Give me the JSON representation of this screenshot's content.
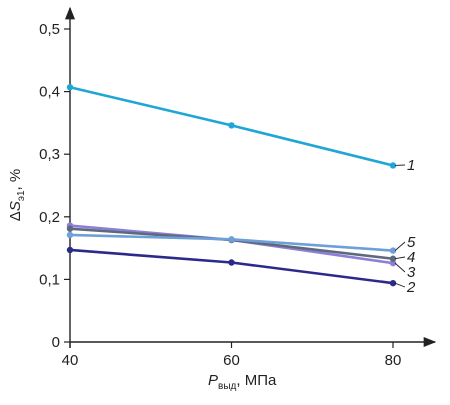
{
  "chart_data": {
    "type": "line",
    "x": [
      40,
      60,
      80
    ],
    "xticks": [
      "40",
      "60",
      "80"
    ],
    "yticks": [
      "0",
      "0,1",
      "0,2",
      "0,3",
      "0,4",
      "0,5"
    ],
    "xlim": [
      40,
      80
    ],
    "ylim": [
      0,
      0.5
    ],
    "grid": false,
    "xlabel": {
      "symbol": "P",
      "sub": "выд",
      "rest": ", МПа"
    },
    "ylabel": {
      "prefix": "Δ",
      "symbol": "S",
      "sub": "э1",
      "rest": ", %"
    },
    "series": [
      {
        "name": "1",
        "color": "#1fa6d4",
        "values": [
          0.407,
          0.346,
          0.282
        ]
      },
      {
        "name": "2",
        "color": "#2b2a8c",
        "values": [
          0.147,
          0.127,
          0.094
        ]
      },
      {
        "name": "3",
        "color": "#8f7ed6",
        "values": [
          0.186,
          0.163,
          0.126
        ]
      },
      {
        "name": "4",
        "color": "#5d6a7e",
        "values": [
          0.181,
          0.163,
          0.133
        ]
      },
      {
        "name": "5",
        "color": "#6f9fd8",
        "values": [
          0.171,
          0.164,
          0.146
        ]
      }
    ]
  }
}
